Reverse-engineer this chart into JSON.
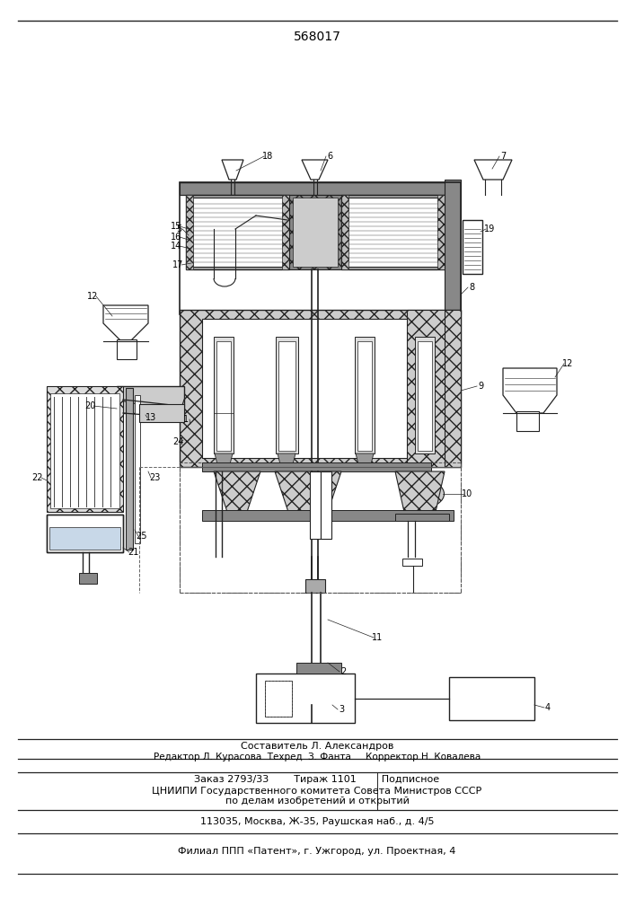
{
  "title": "568017",
  "bg_color": "#ffffff",
  "lc": "#222222",
  "footer_lines": [
    "Составитель Л. Александров",
    "Редактор Л. Курасова  Техред  З. Фанта     Корректор|Н. Ковалева",
    "Заказ 2793/33        Тираж 1101        Подписное",
    "ЦНИИПИ Государственного комитета Совета Министров СССР",
    "по делам изобретений и открытий",
    "113035, Москва, Ж-35, Раушская наб., д. 4/5",
    "Филиал ППП «Патент», г. Ужгород, ул. Проектная, 4"
  ]
}
